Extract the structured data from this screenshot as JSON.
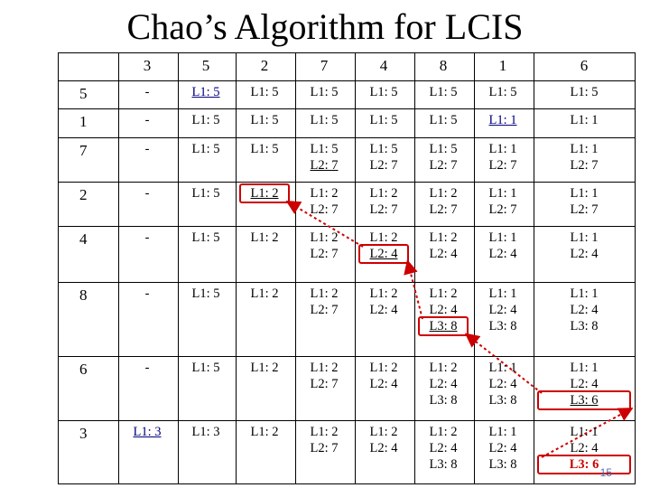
{
  "title": "Chao’s Algorithm for LCIS",
  "columns": [
    "3",
    "5",
    "2",
    "7",
    "4",
    "8",
    "1",
    "6"
  ],
  "rows": [
    {
      "key": "5",
      "cells": [
        [
          "-"
        ],
        [
          "L1: 5"
        ],
        [
          "L1: 5"
        ],
        [
          "L1: 5"
        ],
        [
          "L1: 5"
        ],
        [
          "L1: 5"
        ],
        [
          "L1: 5"
        ],
        [
          "L1: 5"
        ]
      ]
    },
    {
      "key": "1",
      "cells": [
        [
          "-"
        ],
        [
          "L1: 5"
        ],
        [
          "L1: 5"
        ],
        [
          "L1: 5"
        ],
        [
          "L1: 5"
        ],
        [
          "L1: 5"
        ],
        [
          "L1: 1"
        ],
        [
          "L1: 1"
        ]
      ]
    },
    {
      "key": "7",
      "cells": [
        [
          "-"
        ],
        [
          "L1: 5"
        ],
        [
          "L1: 5"
        ],
        [
          "L1: 5",
          "L2: 7"
        ],
        [
          "L1: 5",
          "L2: 7"
        ],
        [
          "L1: 5",
          "L2: 7"
        ],
        [
          "L1: 1",
          "L2: 7"
        ],
        [
          "L1: 1",
          "L2: 7"
        ]
      ]
    },
    {
      "key": "2",
      "cells": [
        [
          "-"
        ],
        [
          "L1: 5"
        ],
        [
          "L1: 2"
        ],
        [
          "L1: 2",
          "L2: 7"
        ],
        [
          "L1: 2",
          "L2: 7"
        ],
        [
          "L1: 2",
          "L2: 7"
        ],
        [
          "L1: 1",
          "L2: 7"
        ],
        [
          "L1: 1",
          "L2: 7"
        ]
      ]
    },
    {
      "key": "4",
      "cells": [
        [
          "-"
        ],
        [
          "L1: 5"
        ],
        [
          "L1: 2"
        ],
        [
          "L1: 2",
          "L2: 7"
        ],
        [
          "L1: 2",
          "L2: 4"
        ],
        [
          "L1: 2",
          "L2: 4"
        ],
        [
          "L1: 1",
          "L2: 4"
        ],
        [
          "L1: 1",
          "L2: 4"
        ]
      ]
    },
    {
      "key": "8",
      "cells": [
        [
          "-"
        ],
        [
          "L1: 5"
        ],
        [
          "L1: 2"
        ],
        [
          "L1: 2",
          "L2: 7"
        ],
        [
          "L1: 2",
          "L2: 4"
        ],
        [
          "L1: 2",
          "L2: 4",
          "L3: 8"
        ],
        [
          "L1: 1",
          "L2: 4",
          "L3: 8"
        ],
        [
          "L1: 1",
          "L2: 4",
          "L3: 8"
        ]
      ]
    },
    {
      "key": "6",
      "cells": [
        [
          "-"
        ],
        [
          "L1: 5"
        ],
        [
          "L1: 2"
        ],
        [
          "L1: 2",
          "L2: 7"
        ],
        [
          "L1: 2",
          "L2: 4"
        ],
        [
          "L1: 2",
          "L2: 4",
          "L3: 8"
        ],
        [
          "L1: 1",
          "L2: 4",
          "L3: 8"
        ],
        [
          "L1: 1",
          "L2: 4",
          "L3: 6"
        ]
      ]
    },
    {
      "key": "3",
      "cells": [
        [
          "L1: 3"
        ],
        [
          "L1: 3"
        ],
        [
          "L1: 2"
        ],
        [
          "L1: 2",
          "L2: 7"
        ],
        [
          "L1: 2",
          "L2: 4"
        ],
        [
          "L1: 2",
          "L2: 4",
          "L3: 8"
        ],
        [
          "L1: 1",
          "L2: 4",
          "L3: 8"
        ],
        [
          "L1: 1",
          "L2: 4",
          "L3: 6"
        ]
      ]
    }
  ],
  "underlined": [
    "0-1-0",
    "1-6-0",
    "2-3-1",
    "3-2-0",
    "4-4-1",
    "5-5-2",
    "6-7-2",
    "7-0-0"
  ],
  "highlight_red": [
    "7-7-2"
  ],
  "trace_boxes": [
    "3-2",
    "4-4",
    "5-5",
    "6-7",
    "7-7"
  ],
  "page_number": "15"
}
